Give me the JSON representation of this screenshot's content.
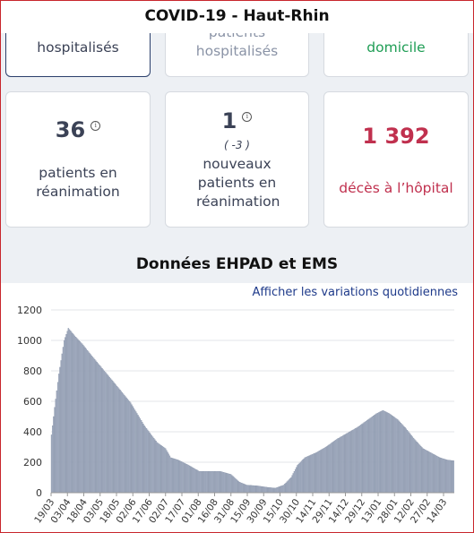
{
  "header": {
    "title": "COVID-19 - Haut-Rhin"
  },
  "cards_top": [
    {
      "label": "hospitalisés",
      "color": "#3b4256"
    },
    {
      "label_top": "patients",
      "label": "hospitalisés",
      "color": "#8a93a6"
    },
    {
      "label": "domicile",
      "color": "#1f9d55"
    }
  ],
  "cards_mid": {
    "rea": {
      "value": "36",
      "label": "patients en réanimation"
    },
    "new_rea": {
      "value": "1",
      "delta": "( -3 )",
      "label": "nouveaux patients en réanimation"
    },
    "deces": {
      "value": "1 392",
      "label": "décès à l’hôpital",
      "color": "#c0304e"
    }
  },
  "ems": {
    "title": "Données EHPAD et EMS",
    "toggle_label": "Afficher les variations quotidiennes"
  },
  "chart_data": {
    "type": "bar",
    "title": "",
    "xlabel": "",
    "ylabel": "",
    "ylim": [
      0,
      1200
    ],
    "yticks": [
      0,
      200,
      400,
      600,
      800,
      1000,
      1200
    ],
    "x_ticks": [
      "19/03",
      "03/04",
      "18/04",
      "03/05",
      "18/05",
      "02/06",
      "17/06",
      "02/07",
      "17/07",
      "01/08",
      "16/08",
      "31/08",
      "15/09",
      "30/09",
      "15/10",
      "30/10",
      "14/11",
      "29/11",
      "14/12",
      "29/12",
      "13/01",
      "28/01",
      "12/02",
      "27/02",
      "14/03"
    ],
    "keypoints": [
      {
        "day": 0,
        "value": 380
      },
      {
        "day": 3,
        "value": 560
      },
      {
        "day": 7,
        "value": 780
      },
      {
        "day": 12,
        "value": 1000
      },
      {
        "day": 16,
        "value": 1080
      },
      {
        "day": 22,
        "value": 1030
      },
      {
        "day": 30,
        "value": 970
      },
      {
        "day": 38,
        "value": 900
      },
      {
        "day": 50,
        "value": 800
      },
      {
        "day": 62,
        "value": 700
      },
      {
        "day": 75,
        "value": 590
      },
      {
        "day": 88,
        "value": 440
      },
      {
        "day": 100,
        "value": 330
      },
      {
        "day": 108,
        "value": 290
      },
      {
        "day": 113,
        "value": 230
      },
      {
        "day": 120,
        "value": 215
      },
      {
        "day": 130,
        "value": 180
      },
      {
        "day": 140,
        "value": 140
      },
      {
        "day": 150,
        "value": 140
      },
      {
        "day": 160,
        "value": 140
      },
      {
        "day": 170,
        "value": 120
      },
      {
        "day": 178,
        "value": 70
      },
      {
        "day": 185,
        "value": 50
      },
      {
        "day": 195,
        "value": 45
      },
      {
        "day": 205,
        "value": 35
      },
      {
        "day": 212,
        "value": 30
      },
      {
        "day": 220,
        "value": 50
      },
      {
        "day": 227,
        "value": 100
      },
      {
        "day": 233,
        "value": 180
      },
      {
        "day": 240,
        "value": 230
      },
      {
        "day": 250,
        "value": 260
      },
      {
        "day": 260,
        "value": 300
      },
      {
        "day": 270,
        "value": 350
      },
      {
        "day": 280,
        "value": 390
      },
      {
        "day": 290,
        "value": 430
      },
      {
        "day": 300,
        "value": 480
      },
      {
        "day": 308,
        "value": 520
      },
      {
        "day": 314,
        "value": 540
      },
      {
        "day": 320,
        "value": 520
      },
      {
        "day": 328,
        "value": 480
      },
      {
        "day": 336,
        "value": 420
      },
      {
        "day": 344,
        "value": 350
      },
      {
        "day": 352,
        "value": 290
      },
      {
        "day": 360,
        "value": 260
      },
      {
        "day": 368,
        "value": 230
      },
      {
        "day": 375,
        "value": 215
      },
      {
        "day": 381,
        "value": 210
      }
    ],
    "bar_color": "#a7b1c4",
    "bar_edge": "#7e8aa1",
    "grid": true
  }
}
